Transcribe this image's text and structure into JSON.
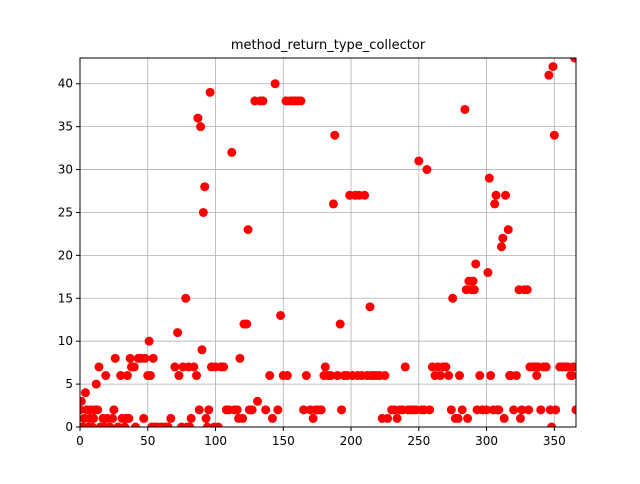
{
  "chart_data": {
    "type": "scatter",
    "title": "method_return_type_collector",
    "color": "#ff0000",
    "grid": true,
    "xlim": [
      0,
      366
    ],
    "ylim": [
      0,
      43
    ],
    "xticks": [
      0,
      50,
      100,
      150,
      200,
      250,
      300,
      350
    ],
    "yticks": [
      0,
      5,
      10,
      15,
      20,
      25,
      30,
      35,
      40
    ],
    "x": [
      0,
      1,
      2,
      3,
      4,
      5,
      6,
      7,
      8,
      9,
      10,
      11,
      12,
      13,
      14,
      15,
      17,
      18,
      19,
      20,
      22,
      24,
      25,
      26,
      28,
      30,
      31,
      33,
      34,
      35,
      36,
      37,
      38,
      40,
      41,
      43,
      45,
      47,
      48,
      50,
      51,
      52,
      53,
      54,
      55,
      57,
      60,
      63,
      65,
      67,
      70,
      72,
      73,
      75,
      76,
      78,
      79,
      80,
      81,
      82,
      84,
      86,
      87,
      88,
      89,
      90,
      91,
      92,
      93,
      94,
      95,
      96,
      97,
      99,
      100,
      102,
      104,
      106,
      108,
      110,
      112,
      114,
      116,
      117,
      118,
      120,
      121,
      123,
      124,
      125,
      127,
      129,
      131,
      133,
      135,
      137,
      140,
      142,
      144,
      146,
      148,
      150,
      152,
      153,
      155,
      157,
      159,
      161,
      163,
      165,
      167,
      170,
      172,
      174,
      176,
      178,
      180,
      181,
      183,
      185,
      187,
      188,
      190,
      192,
      193,
      195,
      197,
      199,
      201,
      203,
      205,
      206,
      208,
      210,
      212,
      214,
      215,
      217,
      219,
      221,
      223,
      225,
      227,
      230,
      232,
      234,
      236,
      238,
      240,
      242,
      244,
      246,
      248,
      250,
      252,
      254,
      256,
      258,
      260,
      262,
      264,
      266,
      268,
      270,
      272,
      274,
      275,
      277,
      279,
      280,
      282,
      284,
      285,
      286,
      287,
      289,
      290,
      291,
      292,
      293,
      295,
      297,
      300,
      301,
      302,
      303,
      305,
      306,
      307,
      308,
      309,
      311,
      312,
      313,
      314,
      316,
      317,
      318,
      320,
      322,
      324,
      325,
      326,
      328,
      330,
      331,
      332,
      334,
      336,
      337,
      338,
      340,
      342,
      344,
      346,
      347,
      348,
      349,
      350,
      351,
      354,
      356,
      358,
      360,
      362,
      363,
      364,
      365,
      366
    ],
    "values": [
      2,
      3,
      0,
      1,
      4,
      2,
      0,
      1,
      2,
      0,
      1,
      2,
      5,
      2,
      7,
      0,
      1,
      0,
      6,
      1,
      0,
      1,
      2,
      8,
      0,
      6,
      1,
      0,
      1,
      6,
      1,
      8,
      7,
      7,
      0,
      8,
      8,
      1,
      8,
      6,
      10,
      6,
      0,
      8,
      0,
      0,
      0,
      0,
      0,
      1,
      7,
      11,
      6,
      0,
      7,
      15,
      0,
      7,
      0,
      1,
      7,
      6,
      36,
      2,
      35,
      9,
      25,
      28,
      1,
      0,
      2,
      39,
      7,
      0,
      7,
      0,
      7,
      7,
      2,
      2,
      32,
      2,
      2,
      1,
      8,
      1,
      12,
      12,
      23,
      2,
      2,
      38,
      3,
      38,
      38,
      2,
      6,
      1,
      40,
      2,
      13,
      6,
      38,
      6,
      38,
      38,
      38,
      38,
      38,
      2,
      6,
      2,
      1,
      2,
      2,
      2,
      6,
      7,
      6,
      6,
      26,
      34,
      6,
      12,
      2,
      6,
      6,
      27,
      6,
      27,
      6,
      27,
      6,
      27,
      6,
      14,
      6,
      6,
      6,
      6,
      1,
      6,
      1,
      2,
      2,
      1,
      2,
      2,
      7,
      2,
      2,
      2,
      2,
      31,
      2,
      2,
      30,
      2,
      7,
      6,
      7,
      6,
      7,
      7,
      6,
      2,
      15,
      1,
      1,
      6,
      2,
      37,
      16,
      1,
      17,
      16,
      17,
      16,
      19,
      2,
      6,
      2,
      2,
      18,
      29,
      6,
      2,
      26,
      27,
      2,
      2,
      21,
      22,
      1,
      27,
      23,
      6,
      6,
      2,
      6,
      16,
      1,
      2,
      16,
      16,
      2,
      7,
      7,
      7,
      6,
      7,
      2,
      7,
      7,
      41,
      2,
      0,
      42,
      34,
      2,
      7,
      7,
      7,
      7,
      6,
      6,
      7,
      43,
      2
    ]
  }
}
